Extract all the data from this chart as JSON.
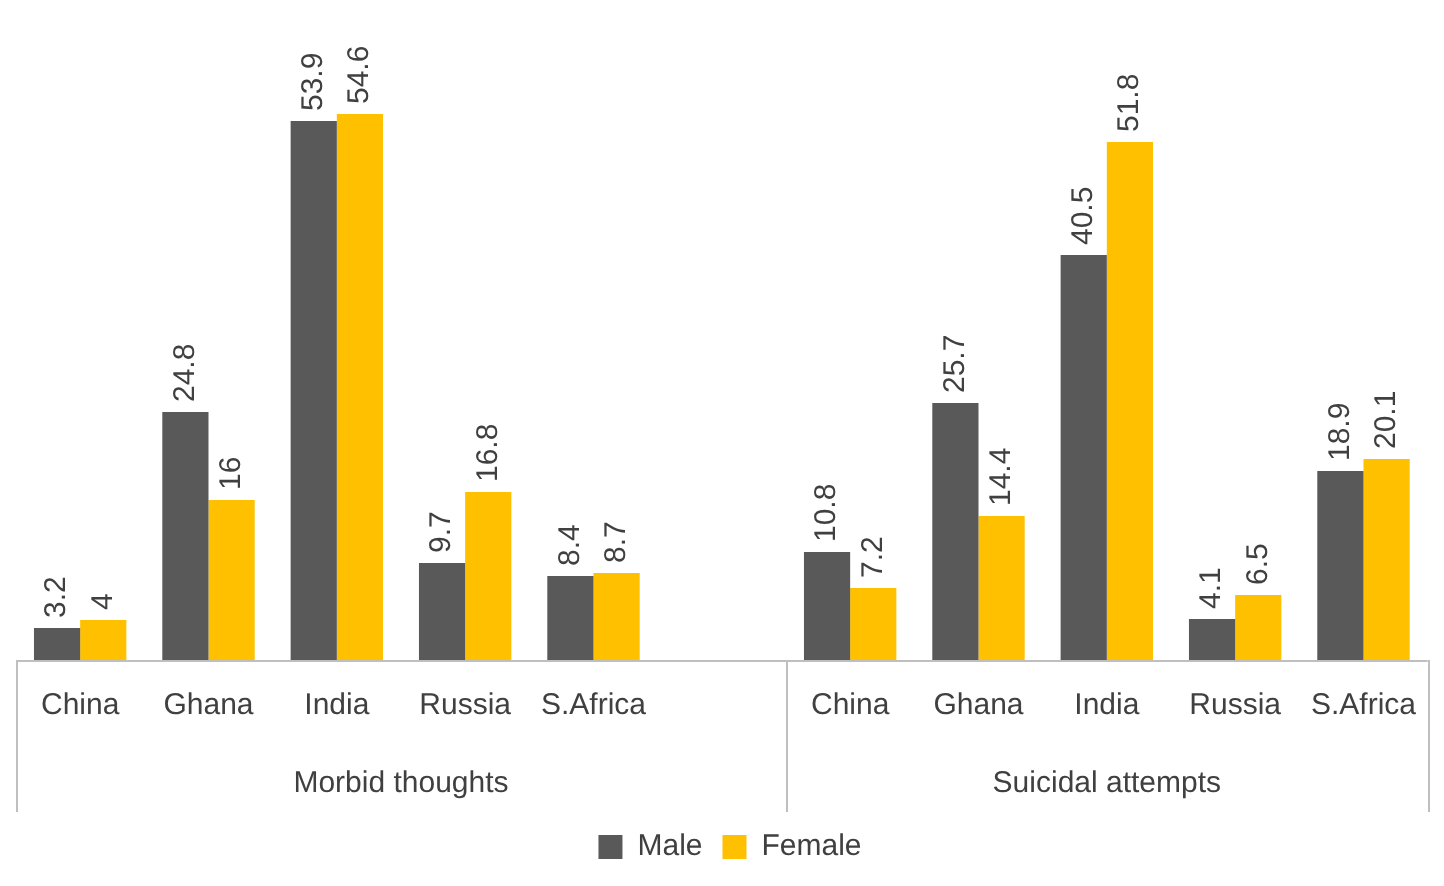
{
  "chart_data": {
    "type": "bar",
    "categories": [
      "China",
      "Ghana",
      "India",
      "Russia",
      "S.Africa",
      null,
      "China",
      "Ghana",
      "India",
      "Russia",
      "S.Africa"
    ],
    "series": [
      {
        "name": "Male",
        "color": "#595959",
        "values": [
          3.2,
          24.8,
          53.9,
          9.7,
          8.4,
          null,
          10.8,
          25.7,
          40.5,
          4.1,
          18.9
        ]
      },
      {
        "name": "Female",
        "color": "#ffc000",
        "values": [
          4,
          16,
          54.6,
          16.8,
          8.7,
          null,
          7.2,
          14.4,
          51.8,
          6.5,
          20.1
        ]
      }
    ],
    "annotations": [
      "Morbid thoughts",
      "Suicidal attempts"
    ],
    "data_labels": true,
    "grid": false,
    "legend": "bottom"
  }
}
